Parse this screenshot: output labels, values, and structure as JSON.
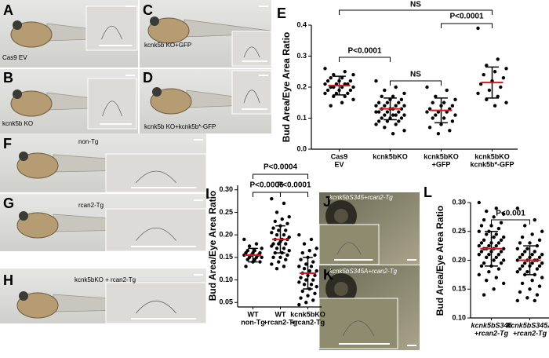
{
  "photo_panels": [
    {
      "label": "A",
      "caption": "Cas9 EV"
    },
    {
      "label": "C",
      "caption": "kcnk5b KO+GFP"
    },
    {
      "label": "B",
      "caption": "kcnk5b KO"
    },
    {
      "label": "D",
      "caption": "kcnk5b KO+kcnk5b*-GFP"
    },
    {
      "label": "F",
      "caption": "non-Tg"
    },
    {
      "label": "G",
      "caption": "rcan2-Tg"
    },
    {
      "label": "H",
      "caption": "kcnk5bKO + rcan2-Tg"
    },
    {
      "label": "J",
      "caption": "kcnk5bS345+rcan2-Tg"
    },
    {
      "label": "K",
      "caption": "kcnk5bS345A+rcan2-Tg"
    }
  ],
  "chart_data": [
    {
      "type": "dotplot",
      "label": "E",
      "y_label": "Bud Area/Eye Area Ratio",
      "point_color": "#000000",
      "mean_color": "#d7191c",
      "ylim": [
        0,
        0.4
      ],
      "yticks": [
        {
          "value": 0,
          "label": "0.0"
        },
        0.1,
        0.2,
        0.3,
        0.4
      ],
      "categories": [
        [
          "Cas9",
          "EV"
        ],
        [
          "kcnk5bKO"
        ],
        [
          "kcnk5bKO",
          "+GFP"
        ],
        [
          "kcnk5bKO",
          "kcnk5b*-GFP"
        ]
      ],
      "groups": [
        {
          "values": [
            0.26,
            0.25,
            0.24,
            0.24,
            0.23,
            0.23,
            0.22,
            0.22,
            0.22,
            0.21,
            0.21,
            0.21,
            0.21,
            0.2,
            0.2,
            0.2,
            0.2,
            0.19,
            0.19,
            0.19,
            0.18,
            0.18,
            0.18,
            0.17,
            0.17,
            0.16,
            0.15,
            0.14
          ],
          "mean": 0.205,
          "sd": 0.03
        },
        {
          "values": [
            0.22,
            0.2,
            0.19,
            0.18,
            0.17,
            0.17,
            0.16,
            0.16,
            0.15,
            0.15,
            0.15,
            0.14,
            0.14,
            0.14,
            0.14,
            0.13,
            0.13,
            0.13,
            0.13,
            0.12,
            0.12,
            0.12,
            0.12,
            0.11,
            0.11,
            0.11,
            0.11,
            0.1,
            0.1,
            0.1,
            0.09,
            0.09,
            0.09,
            0.08,
            0.08,
            0.07,
            0.06,
            0.05
          ],
          "mean": 0.13,
          "sd": 0.035
        },
        {
          "values": [
            0.2,
            0.19,
            0.17,
            0.16,
            0.15,
            0.15,
            0.14,
            0.14,
            0.13,
            0.13,
            0.12,
            0.12,
            0.12,
            0.11,
            0.11,
            0.1,
            0.1,
            0.09,
            0.08,
            0.07,
            0.06,
            0.05
          ],
          "mean": 0.125,
          "sd": 0.04
        },
        {
          "values": [
            0.39,
            0.29,
            0.27,
            0.26,
            0.25,
            0.24,
            0.23,
            0.22,
            0.21,
            0.2,
            0.19,
            0.18,
            0.17,
            0.16,
            0.15,
            0.14
          ],
          "mean": 0.215,
          "sd": 0.05
        }
      ],
      "annotations": [
        "NS",
        "P<0.0001",
        "NS",
        "P<0.0001"
      ]
    },
    {
      "type": "dotplot",
      "label": "I",
      "y_label": "Bud Area/Eye Area Ratio",
      "point_color": "#000000",
      "mean_color": "#d7191c",
      "ylim": [
        0.04,
        0.31
      ],
      "yticks": [
        0.05,
        {
          "value": 0.1,
          "label": "0.10"
        },
        0.15,
        {
          "value": 0.2,
          "label": "0.20"
        },
        0.25,
        {
          "value": 0.3,
          "label": "0.30"
        }
      ],
      "categories": [
        [
          "WT",
          "non-Tg"
        ],
        [
          "WT",
          "+rcan2-Tg"
        ],
        [
          "kcnk5bKO",
          "+rcan2-Tg"
        ]
      ],
      "groups": [
        {
          "values": [
            0.19,
            0.18,
            0.175,
            0.17,
            0.165,
            0.165,
            0.16,
            0.16,
            0.16,
            0.155,
            0.155,
            0.155,
            0.15,
            0.15,
            0.15,
            0.145,
            0.145,
            0.14,
            0.14,
            0.13
          ],
          "mean": 0.155,
          "sd": 0.015
        },
        {
          "values": [
            0.28,
            0.27,
            0.25,
            0.24,
            0.235,
            0.23,
            0.225,
            0.22,
            0.215,
            0.21,
            0.21,
            0.205,
            0.2,
            0.2,
            0.195,
            0.19,
            0.19,
            0.19,
            0.185,
            0.18,
            0.18,
            0.18,
            0.175,
            0.17,
            0.17,
            0.165,
            0.16,
            0.16,
            0.155,
            0.15,
            0.15,
            0.145,
            0.14,
            0.135,
            0.13,
            0.125
          ],
          "mean": 0.19,
          "sd": 0.03
        },
        {
          "values": [
            0.2,
            0.19,
            0.18,
            0.17,
            0.165,
            0.16,
            0.155,
            0.15,
            0.145,
            0.14,
            0.135,
            0.13,
            0.13,
            0.125,
            0.12,
            0.12,
            0.115,
            0.11,
            0.11,
            0.105,
            0.1,
            0.1,
            0.095,
            0.09,
            0.09,
            0.085,
            0.08,
            0.075,
            0.07,
            0.065,
            0.06,
            0.055,
            0.05,
            0.045
          ],
          "mean": 0.115,
          "sd": 0.035
        }
      ],
      "annotations": [
        "P<0.0004",
        "P<0.0006",
        "P<0.0001"
      ]
    },
    {
      "type": "dotplot",
      "label": "L",
      "y_label": "Bud Area/Eye Area Ratio",
      "point_color": "#000000",
      "mean_color": "#d7191c",
      "ylim": [
        0.1,
        0.3
      ],
      "yticks": [
        {
          "value": 0.1,
          "label": "0.10"
        },
        0.15,
        {
          "value": 0.2,
          "label": "0.20"
        },
        0.25,
        {
          "value": 0.3,
          "label": "0.30"
        }
      ],
      "categories": [
        [
          "kcnk5bS345",
          "+rcan2-Tg"
        ],
        [
          "kcnk5bS345A",
          "+rcan2-Tg"
        ]
      ],
      "groups": [
        {
          "values": [
            0.3,
            0.29,
            0.285,
            0.28,
            0.275,
            0.27,
            0.265,
            0.26,
            0.26,
            0.255,
            0.25,
            0.25,
            0.245,
            0.245,
            0.24,
            0.24,
            0.235,
            0.235,
            0.23,
            0.23,
            0.23,
            0.225,
            0.225,
            0.225,
            0.22,
            0.22,
            0.22,
            0.22,
            0.215,
            0.215,
            0.215,
            0.21,
            0.21,
            0.21,
            0.205,
            0.205,
            0.2,
            0.2,
            0.195,
            0.195,
            0.19,
            0.19,
            0.185,
            0.18,
            0.175,
            0.17,
            0.165,
            0.16,
            0.15,
            0.14
          ],
          "mean": 0.22,
          "sd": 0.03
        },
        {
          "values": [
            0.29,
            0.27,
            0.26,
            0.25,
            0.245,
            0.24,
            0.235,
            0.23,
            0.23,
            0.225,
            0.22,
            0.22,
            0.215,
            0.215,
            0.21,
            0.21,
            0.21,
            0.205,
            0.205,
            0.205,
            0.2,
            0.2,
            0.2,
            0.2,
            0.195,
            0.195,
            0.195,
            0.19,
            0.19,
            0.19,
            0.185,
            0.185,
            0.18,
            0.18,
            0.175,
            0.175,
            0.17,
            0.165,
            0.16,
            0.155,
            0.15,
            0.145,
            0.14,
            0.135,
            0.13,
            0.13
          ],
          "mean": 0.2,
          "sd": 0.025
        }
      ],
      "annotations": [
        "P<0.001"
      ]
    }
  ]
}
